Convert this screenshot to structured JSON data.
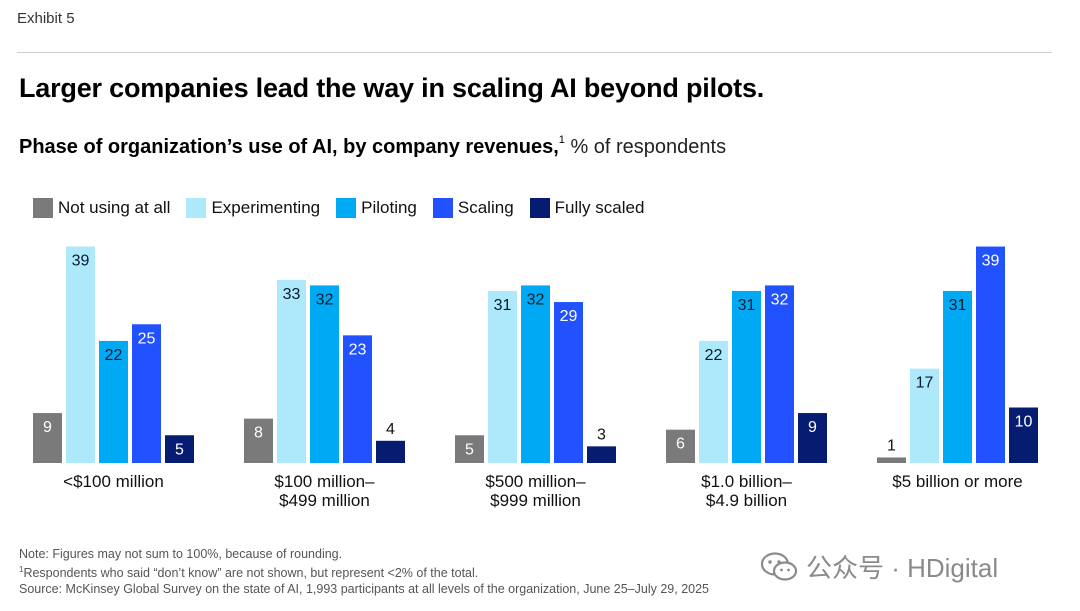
{
  "header": {
    "exhibit": "Exhibit 5",
    "title": "Larger companies lead the way in scaling AI beyond pilots.",
    "subtitle_bold": "Phase of organization’s use of AI, by company revenues,",
    "subtitle_sup": "1",
    "subtitle_unit": " % of respondents"
  },
  "legend": [
    {
      "label": "Not using at all",
      "color": "#7a7a7a"
    },
    {
      "label": "Experimenting",
      "color": "#aee8fb"
    },
    {
      "label": "Piloting",
      "color": "#00a9f4"
    },
    {
      "label": "Scaling",
      "color": "#2251ff"
    },
    {
      "label": "Fully scaled",
      "color": "#051c71"
    }
  ],
  "chart_data": {
    "type": "bar",
    "categories": [
      "<$100 million",
      "$100 million–\n$499 million",
      "$500 million–\n$999 million",
      "$1.0 billion–\n$4.9 billion",
      "$5 billion or more"
    ],
    "series": [
      {
        "name": "Not using at all",
        "values": [
          9,
          8,
          5,
          6,
          1
        ]
      },
      {
        "name": "Experimenting",
        "values": [
          39,
          33,
          31,
          22,
          17
        ]
      },
      {
        "name": "Piloting",
        "values": [
          22,
          32,
          32,
          31,
          31
        ]
      },
      {
        "name": "Scaling",
        "values": [
          25,
          23,
          29,
          32,
          39
        ]
      },
      {
        "name": "Fully scaled",
        "values": [
          5,
          4,
          3,
          9,
          10
        ]
      }
    ],
    "ylim": [
      0,
      40
    ],
    "grid": false,
    "legend_position": "top-left"
  },
  "notes": {
    "line1": "Note: Figures may not sum to 100%, because of rounding.",
    "line2_sup": "1",
    "line2": "Respondents who said “don’t know” are not shown, but represent <2% of the total.",
    "line3": "Source: McKinsey Global Survey on the state of AI, 1,993 participants at all levels of the organization, June 25–July 29, 2025"
  },
  "watermark": {
    "text": "公众号 · HDigital",
    "icon": "wechat-icon"
  }
}
